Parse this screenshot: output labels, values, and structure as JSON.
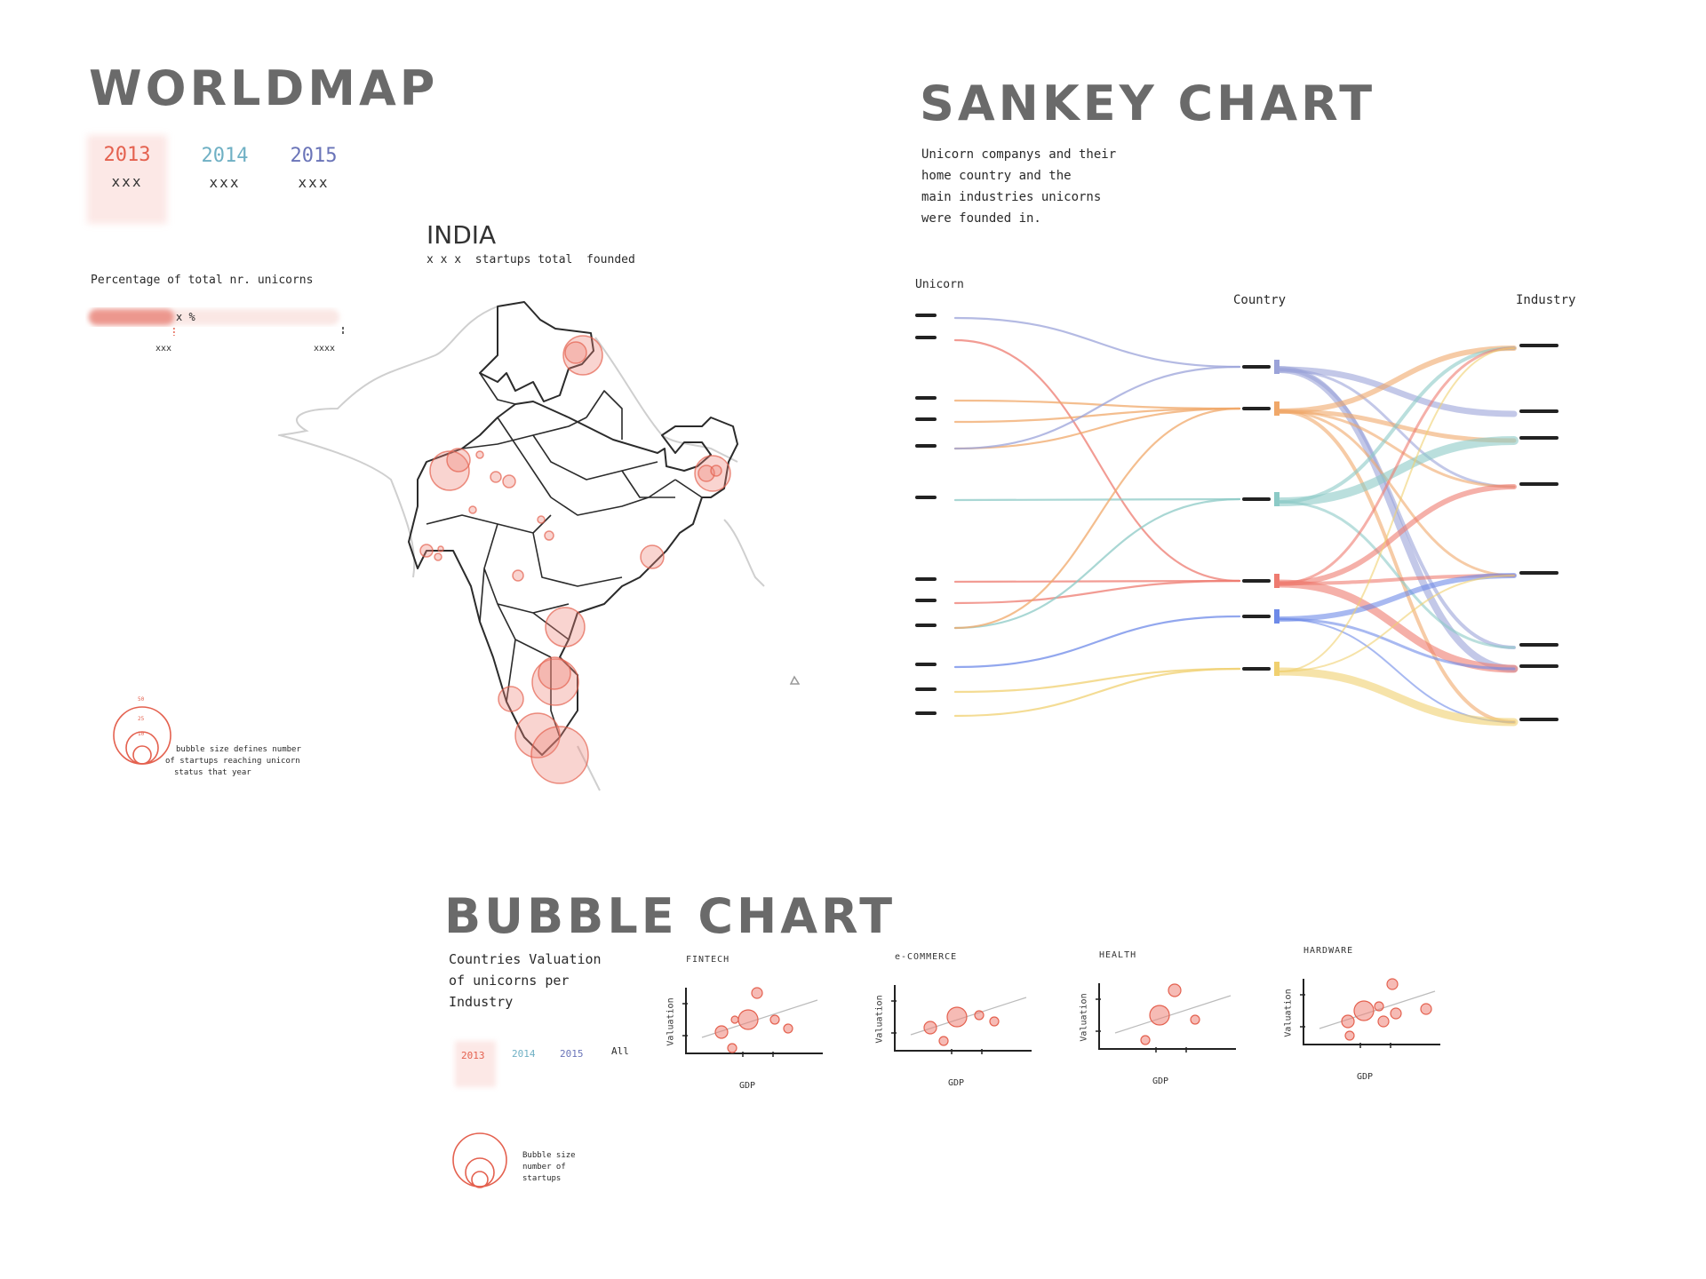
{
  "colors": {
    "accent_red": "#e8766b",
    "year_2013": "#e4614f",
    "year_2014": "#6fb0c4",
    "year_2015": "#6a74b8",
    "map_line": "#2b2b2b",
    "outline": "#c8c8c8"
  },
  "worldmap": {
    "title": "Worldmap",
    "years": [
      {
        "year": "2013",
        "value": "xxx",
        "selected": true
      },
      {
        "year": "2014",
        "value": "xxx",
        "selected": false
      },
      {
        "year": "2015",
        "value": "xxx",
        "selected": false
      }
    ],
    "percentage_label": "Percentage of total nr. unicorns",
    "percentage_value": "x %",
    "percentage_fraction": 0.34,
    "bar_min": "xxx",
    "bar_max": "xxxx",
    "country_title": "INDIA",
    "country_subtitle": "x x x  startups total  founded",
    "legend_sizes": [
      "50",
      "25",
      "10"
    ],
    "legend_text": [
      "bubble size defines number",
      "of startups reaching unicorn",
      "status  that  year"
    ]
  },
  "sankey": {
    "title": "Sankey Chart",
    "description": [
      "Unicorn  companys  and  their",
      "home  country  and  the",
      "main   industries   unicorns",
      "were   founded   in."
    ],
    "col_labels": [
      "Unicorn",
      "Country",
      "Industry"
    ]
  },
  "bubble": {
    "title": "Bubble Chart",
    "description": [
      "Countries Valuation",
      "of  unicorns  per",
      "Industry"
    ],
    "years": [
      {
        "label": "2013",
        "selected": true
      },
      {
        "label": "2014",
        "selected": false
      },
      {
        "label": "2015",
        "selected": false
      },
      {
        "label": "All",
        "selected": false
      }
    ],
    "legend_text": [
      "Bubble size",
      "number of",
      "startups"
    ],
    "x_label": "GDP",
    "y_label": "Valuation",
    "panels": [
      {
        "title": "FINTECH"
      },
      {
        "title": "e-COMMERCE"
      },
      {
        "title": "HEALTH"
      },
      {
        "title": "HARDWARE"
      }
    ]
  }
}
